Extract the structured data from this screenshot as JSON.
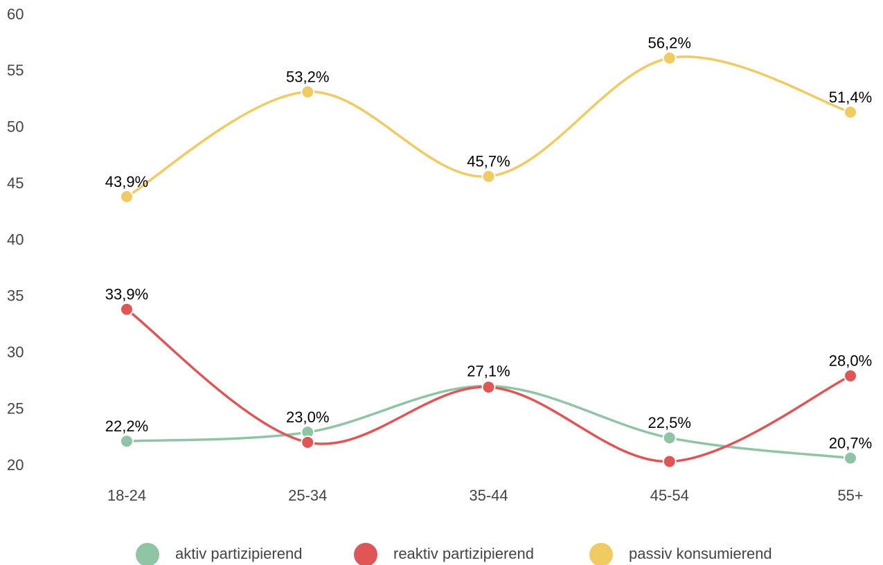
{
  "chart_data": {
    "type": "line",
    "categories": [
      "18-24",
      "25-34",
      "35-44",
      "45-54",
      "55+"
    ],
    "series": [
      {
        "name": "aktiv partizipierend",
        "color": "#8fc4a4",
        "values": [
          22.2,
          23.0,
          27.1,
          22.5,
          20.7
        ],
        "value_labels": [
          "22,2%",
          "23,0%",
          "27,1%",
          "22,5%",
          "20,7%"
        ]
      },
      {
        "name": "reaktiv partizipierend",
        "color": "#e05555",
        "values": [
          33.9,
          22.1,
          27.0,
          20.4,
          28.0
        ],
        "value_labels": [
          "33,9%",
          null,
          null,
          null,
          "28,0%"
        ]
      },
      {
        "name": "passiv konsumierend",
        "color": "#f0cb62",
        "values": [
          43.9,
          53.2,
          45.7,
          56.2,
          51.4
        ],
        "value_labels": [
          "43,9%",
          "53,2%",
          "45,7%",
          "56,2%",
          "51,4%"
        ]
      }
    ],
    "ylim": [
      20,
      60
    ],
    "yticks": [
      20,
      25,
      30,
      35,
      40,
      45,
      50,
      55,
      60
    ],
    "grid": false,
    "legend": "bottom"
  }
}
